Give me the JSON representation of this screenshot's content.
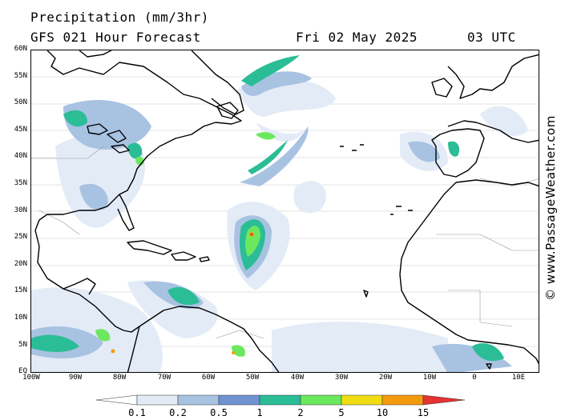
{
  "header": {
    "title": "Precipitation (mm/3hr)",
    "subtitle": "GFS 021 Hour Forecast",
    "date": "Fri 02 May 2025",
    "time": "03 UTC"
  },
  "map": {
    "lat_labels": [
      "60N",
      "55N",
      "50N",
      "45N",
      "40N",
      "35N",
      "30N",
      "25N",
      "20N",
      "15N",
      "10N",
      "5N",
      "EQ"
    ],
    "lon_labels": [
      "100W",
      "90W",
      "80W",
      "70W",
      "60W",
      "50W",
      "40W",
      "30W",
      "20W",
      "10W",
      "0",
      "10E"
    ],
    "land_color": "#ffffff",
    "coast_color": "#000000",
    "border_color": "#999999"
  },
  "legend": {
    "labels": [
      "0.1",
      "0.2",
      "0.5",
      "1",
      "2",
      "5",
      "10",
      "15"
    ],
    "colors": [
      "#ffffff",
      "#e3ebf6",
      "#a8c2e2",
      "#6e93d2",
      "#2bbd96",
      "#6ce85e",
      "#f0dc12",
      "#f49a0f",
      "#e53333"
    ]
  },
  "copyright": "© www.PassageWeather.com"
}
